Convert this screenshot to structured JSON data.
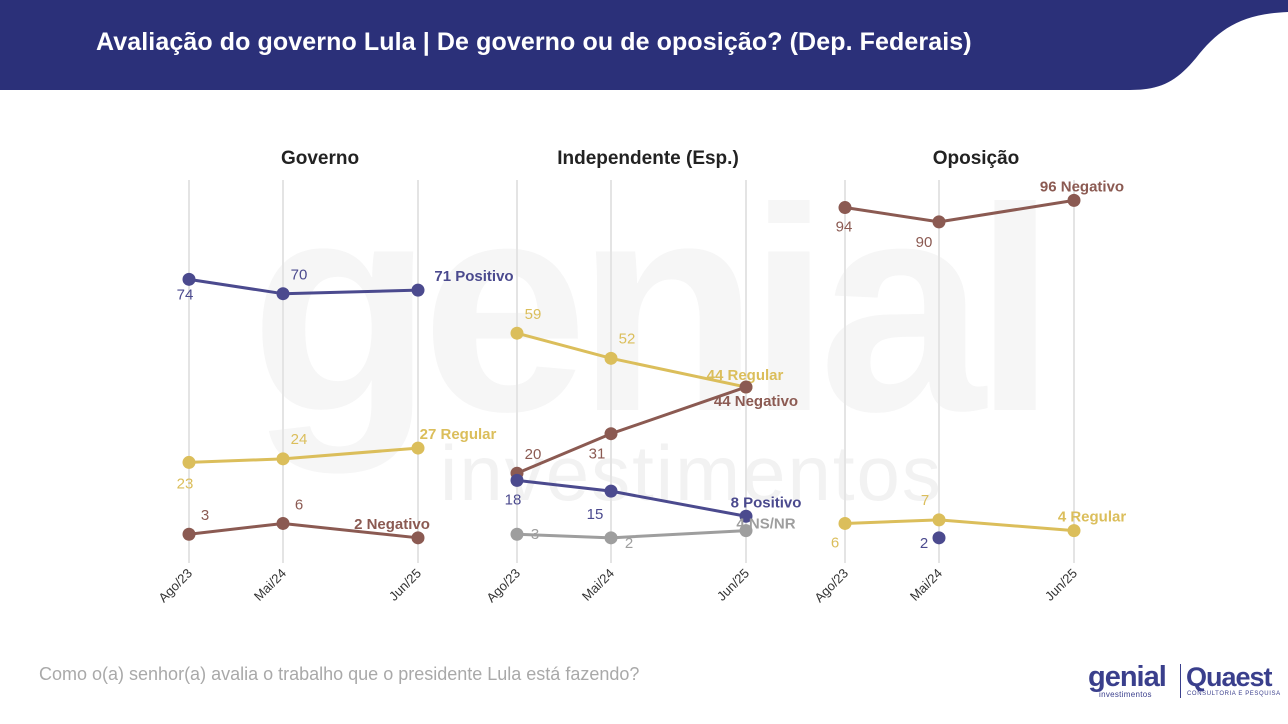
{
  "header": {
    "title": "Avaliação do governo Lula | De governo ou de oposição? (Dep. Federais)"
  },
  "colors": {
    "header_bg": "#2b3079",
    "positivo": "#4b4a8e",
    "regular": "#dbbe5b",
    "negativo": "#8b5a52",
    "nsnr": "#9e9e9e",
    "grid": "#e4e4e4"
  },
  "chart_data": [
    {
      "type": "line",
      "title": "Governo",
      "x": [
        "Ago/23",
        "Mai/24",
        "Jun/25"
      ],
      "ylim": [
        0,
        100
      ],
      "grid": true,
      "series": [
        {
          "name": "Positivo",
          "color": "#4b4a8e",
          "values": [
            74,
            70,
            71
          ],
          "labels": [
            "74",
            "70",
            "71 Positivo"
          ]
        },
        {
          "name": "Regular",
          "color": "#dbbe5b",
          "values": [
            23,
            24,
            27
          ],
          "labels": [
            "23",
            "24",
            "27 Regular"
          ]
        },
        {
          "name": "Negativo",
          "color": "#8b5a52",
          "values": [
            3,
            6,
            2
          ],
          "labels": [
            "3",
            "6",
            "2 Negativo"
          ]
        }
      ]
    },
    {
      "type": "line",
      "title": "Independente (Esp.)",
      "x": [
        "Ago/23",
        "Mai/24",
        "Jun/25"
      ],
      "ylim": [
        0,
        100
      ],
      "grid": true,
      "series": [
        {
          "name": "Regular",
          "color": "#dbbe5b",
          "values": [
            59,
            52,
            44
          ],
          "labels": [
            "59",
            "52",
            "44 Regular"
          ]
        },
        {
          "name": "Negativo",
          "color": "#8b5a52",
          "values": [
            20,
            31,
            44
          ],
          "labels": [
            "20",
            "31",
            "44 Negativo"
          ]
        },
        {
          "name": "Positivo",
          "color": "#4b4a8e",
          "values": [
            18,
            15,
            8
          ],
          "labels": [
            "18",
            "15",
            "8 Positivo"
          ]
        },
        {
          "name": "NS/NR",
          "color": "#9e9e9e",
          "values": [
            3,
            2,
            4
          ],
          "labels": [
            "3",
            "2",
            "4 NS/NR"
          ]
        }
      ]
    },
    {
      "type": "line",
      "title": "Oposição",
      "x": [
        "Ago/23",
        "Mai/24",
        "Jun/25"
      ],
      "ylim": [
        0,
        100
      ],
      "grid": true,
      "series": [
        {
          "name": "Negativo",
          "color": "#8b5a52",
          "values": [
            94,
            90,
            96
          ],
          "labels": [
            "94",
            "90",
            "96 Negativo"
          ]
        },
        {
          "name": "Regular",
          "color": "#dbbe5b",
          "values": [
            6,
            7,
            4
          ],
          "labels": [
            "6",
            "7",
            "4 Regular"
          ]
        },
        {
          "name": "Positivo",
          "color": "#4b4a8e",
          "values": [
            null,
            2,
            null
          ],
          "labels": [
            "",
            "2",
            ""
          ]
        }
      ]
    }
  ],
  "watermark": {
    "brand": "genial",
    "sub": "investimentos"
  },
  "footer": {
    "question": "Como o(a) senhor(a) avalia o trabalho que o presidente Lula está fazendo?"
  },
  "logos": {
    "genial_brand": "genial",
    "genial_sub": "investimentos",
    "quaest_brand": "Quaest",
    "quaest_sub": "CONSULTORIA E PESQUISA"
  }
}
